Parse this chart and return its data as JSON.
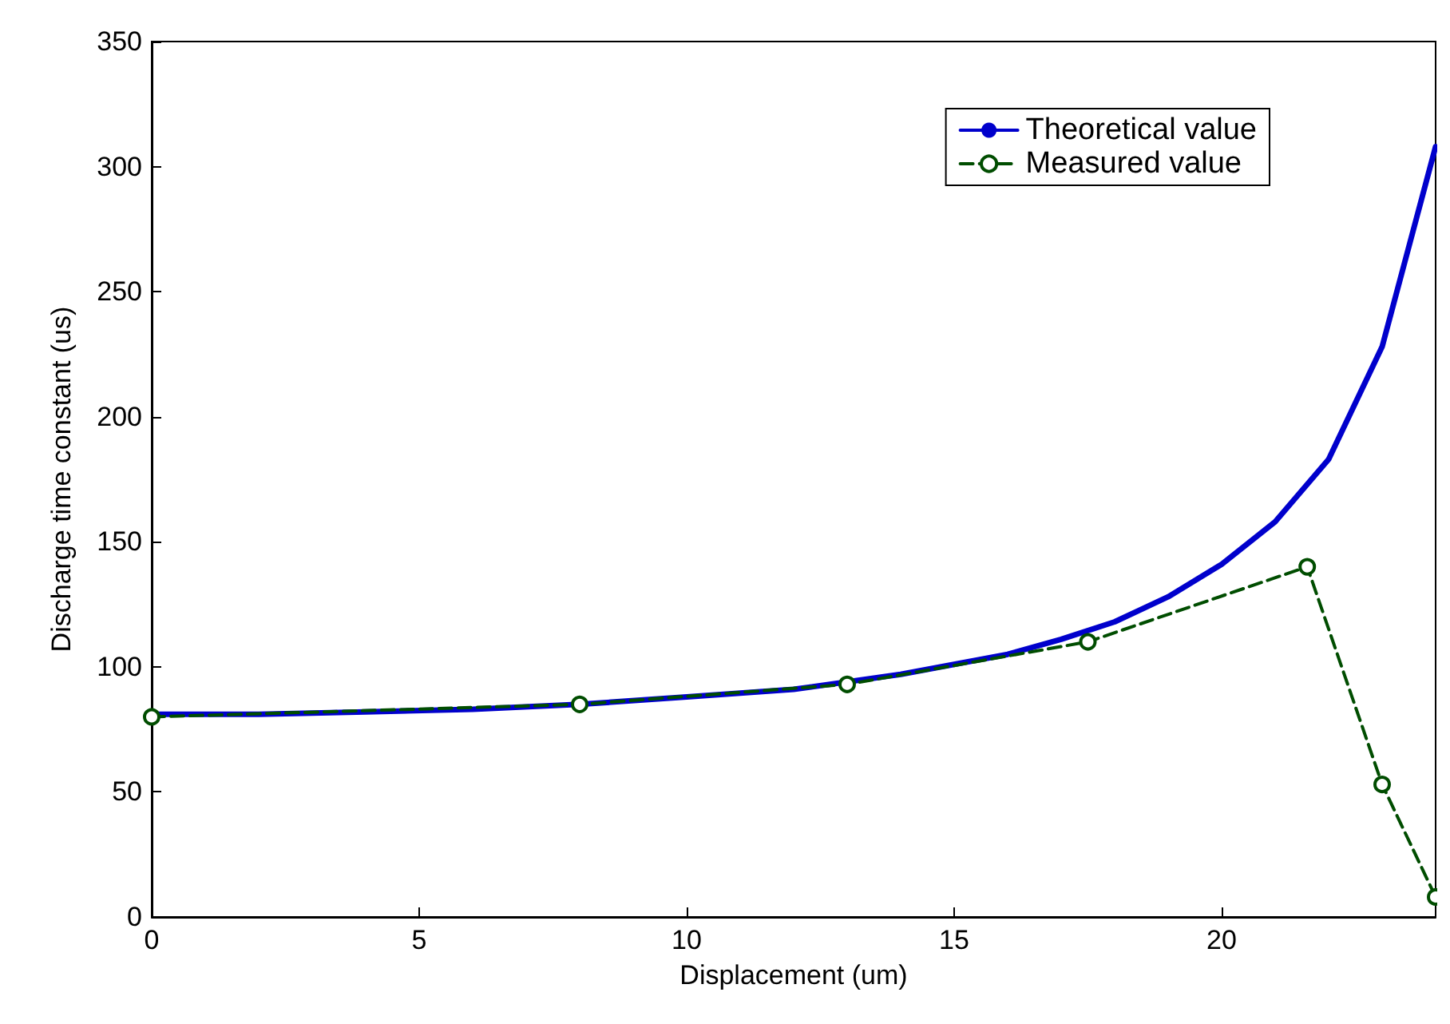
{
  "chart_data": {
    "type": "line",
    "xlabel": "Displacement (um)",
    "ylabel": "Discharge time constant (us)",
    "xlim": [
      0,
      24
    ],
    "xticks": [
      0,
      5,
      10,
      15,
      20
    ],
    "ylim": [
      0,
      350
    ],
    "yticks": [
      0,
      50,
      100,
      150,
      200,
      250,
      300,
      350
    ],
    "grid": false,
    "legend": "top right",
    "series": [
      {
        "name": "Theoretical value",
        "color": "#0000cc",
        "line_style": "solid",
        "marker": "none",
        "x": [
          0,
          2,
          4,
          6,
          8,
          10,
          12,
          14,
          16,
          17,
          18,
          19,
          20,
          21,
          22,
          23,
          24
        ],
        "values": [
          81,
          81,
          82,
          83,
          85,
          88,
          91,
          97,
          105,
          111,
          118,
          128,
          141,
          158,
          183,
          228,
          308
        ]
      },
      {
        "name": "Measured value",
        "color": "#004d00",
        "line_style": "dashed",
        "marker": "circle",
        "x": [
          0,
          8,
          13,
          17.5,
          21.6,
          23,
          24
        ],
        "values": [
          80,
          85,
          93,
          110,
          140,
          53,
          8
        ]
      }
    ]
  }
}
